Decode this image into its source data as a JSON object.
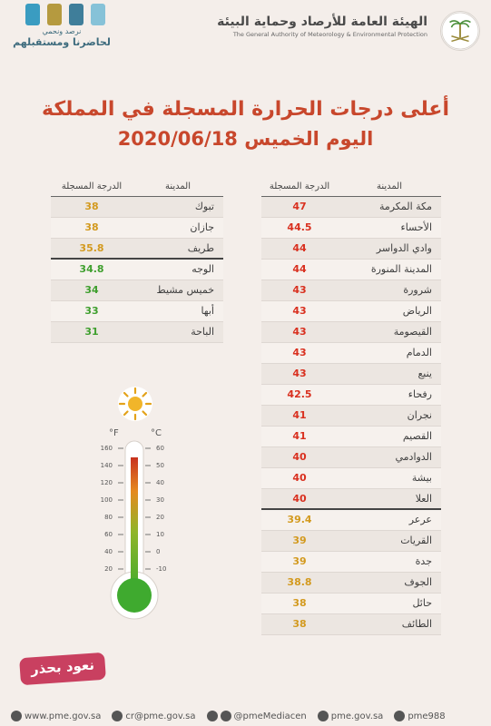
{
  "header": {
    "brand_small": "نرصد ونحمي",
    "brand_big": "لحاضرنا ومستقبلهم",
    "agency_ar": "الهيئة العامة للأرصاد وحماية البيئة",
    "agency_en": "The General Authority of Meteorology & Environmental Protection"
  },
  "title": {
    "line1": "أعلى درجات الحرارة المسجلة في المملكة",
    "line2": "اليوم الخميس 2020/06/18"
  },
  "colors": {
    "red": "#d9301f",
    "orange": "#d39a1f",
    "green": "#3f9f2e",
    "title": "#c8472c"
  },
  "right_table": {
    "col_city": "المدينة",
    "col_temp": "الدرجة المسجلة",
    "rows": [
      {
        "city": "مكة المكرمة",
        "temp": "47",
        "color": "#d9301f"
      },
      {
        "city": "الأحساء",
        "temp": "44.5",
        "color": "#d9301f"
      },
      {
        "city": "وادي الدواسر",
        "temp": "44",
        "color": "#d9301f"
      },
      {
        "city": "المدينة المنورة",
        "temp": "44",
        "color": "#d9301f"
      },
      {
        "city": "شرورة",
        "temp": "43",
        "color": "#d9301f"
      },
      {
        "city": "الرياض",
        "temp": "43",
        "color": "#d9301f"
      },
      {
        "city": "القيصومة",
        "temp": "43",
        "color": "#d9301f"
      },
      {
        "city": "الدمام",
        "temp": "43",
        "color": "#d9301f"
      },
      {
        "city": "ينبع",
        "temp": "43",
        "color": "#d9301f"
      },
      {
        "city": "رفحاء",
        "temp": "42.5",
        "color": "#d9301f"
      },
      {
        "city": "نجران",
        "temp": "41",
        "color": "#d9301f"
      },
      {
        "city": "القصيم",
        "temp": "41",
        "color": "#d9301f"
      },
      {
        "city": "الدوادمي",
        "temp": "40",
        "color": "#d9301f"
      },
      {
        "city": "بيشة",
        "temp": "40",
        "color": "#d9301f"
      },
      {
        "city": "العلا",
        "temp": "40",
        "color": "#d9301f"
      },
      {
        "city": "عرعر",
        "temp": "39.4",
        "color": "#d39a1f",
        "divider": true
      },
      {
        "city": "القريات",
        "temp": "39",
        "color": "#d39a1f"
      },
      {
        "city": "جدة",
        "temp": "39",
        "color": "#d39a1f"
      },
      {
        "city": "الجوف",
        "temp": "38.8",
        "color": "#d39a1f"
      },
      {
        "city": "حائل",
        "temp": "38",
        "color": "#d39a1f"
      },
      {
        "city": "الطائف",
        "temp": "38",
        "color": "#d39a1f"
      }
    ]
  },
  "left_table": {
    "col_city": "المدينة",
    "col_temp": "الدرجة المسجلة",
    "rows": [
      {
        "city": "تبوك",
        "temp": "38",
        "color": "#d39a1f"
      },
      {
        "city": "جازان",
        "temp": "38",
        "color": "#d39a1f"
      },
      {
        "city": "طريف",
        "temp": "35.8",
        "color": "#d39a1f"
      },
      {
        "city": "الوجه",
        "temp": "34.8",
        "color": "#3f9f2e",
        "divider": true
      },
      {
        "city": "خميس مشيط",
        "temp": "34",
        "color": "#3f9f2e"
      },
      {
        "city": "أبها",
        "temp": "33",
        "color": "#3f9f2e"
      },
      {
        "city": "الباحة",
        "temp": "31",
        "color": "#3f9f2e"
      }
    ]
  },
  "thermometer": {
    "unit_f": "°F",
    "unit_c": "°C",
    "f_ticks": [
      "160",
      "140",
      "120",
      "100",
      "80",
      "60",
      "40",
      "20"
    ],
    "c_ticks": [
      "60",
      "50",
      "40",
      "30",
      "20",
      "10",
      "0",
      "-10"
    ],
    "icon": "sun-icon"
  },
  "badge_text": "نعود بحذر",
  "footer": {
    "website": "www.pme.gov.sa",
    "email": "cr@pme.gov.sa",
    "twitter": "@pmeMediacen",
    "facebook": "pme.gov.sa",
    "instagram": "pme988"
  }
}
